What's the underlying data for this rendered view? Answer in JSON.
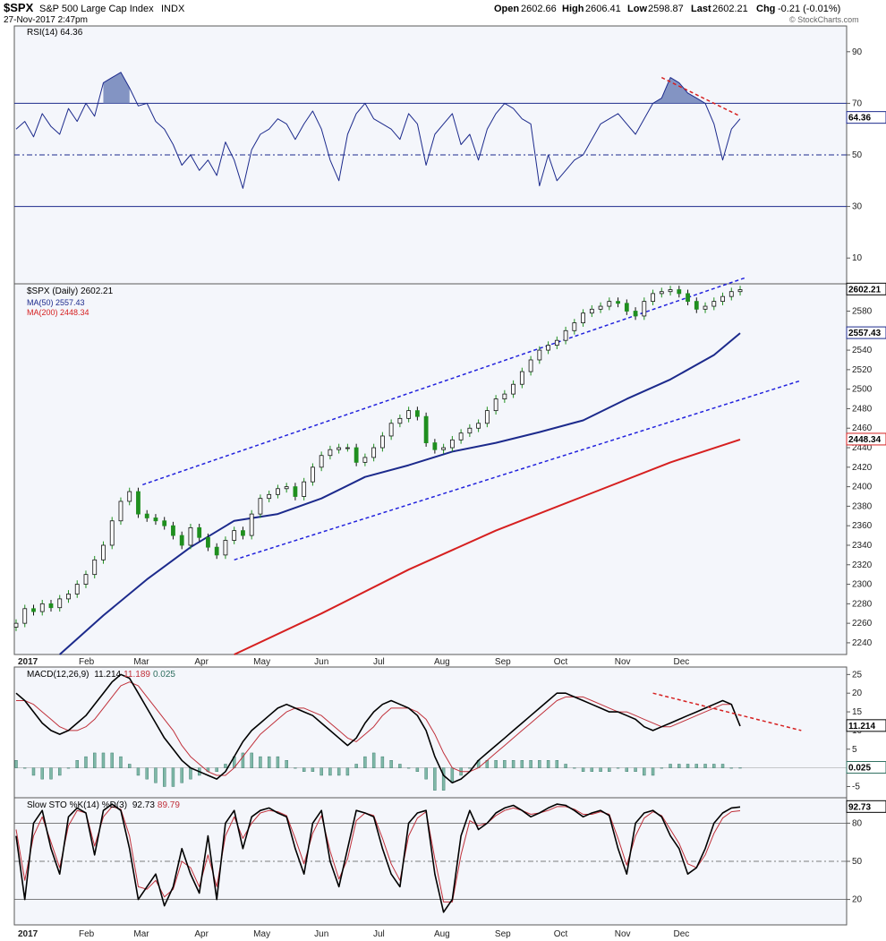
{
  "header": {
    "symbol": "$SPX",
    "name": "S&P 500 Large Cap Index",
    "exchange": "INDX",
    "date": "27-Nov-2017 2:47pm",
    "open_label": "Open",
    "open": "2602.66",
    "high_label": "High",
    "high": "2606.41",
    "low_label": "Low",
    "low": "2598.87",
    "last_label": "Last",
    "last": "2602.21",
    "chg_label": "Chg",
    "chg": "-0.21 (-0.01%)",
    "watermark": "© StockCharts.com"
  },
  "colors": {
    "bg": "#ffffff",
    "panel_bg": "#f4f6fb",
    "frame": "#5a5a5a",
    "rsi_line": "#1c2a8c",
    "rsi_fill": "#6f83b8",
    "ma50": "#1c2a8c",
    "ma200": "#d62020",
    "channel": "#2222dd",
    "diverge": "#d62020",
    "up_candle": "#1f8f1f",
    "down_candle": "#111111",
    "hist": "#7fb8a8",
    "hist_edge": "#2f6f60",
    "sto_d": "#c0303a"
  },
  "months": [
    "2017",
    "Feb",
    "Mar",
    "Apr",
    "May",
    "Jun",
    "Jul",
    "Aug",
    "Sep",
    "Oct",
    "Nov",
    "Dec"
  ],
  "chart_data": [
    {
      "type": "line",
      "id": "rsi",
      "label": "RSI(14) 64.36",
      "last_label": "64.36",
      "ylim": [
        0,
        100
      ],
      "ticks": [
        "90",
        "70",
        "50",
        "30",
        "10"
      ],
      "tick_values": [
        90,
        70,
        50,
        30,
        10
      ],
      "levels": [
        70,
        50,
        30
      ],
      "x": [
        0,
        4,
        8,
        12,
        16,
        20,
        24,
        28,
        32,
        36,
        40,
        44,
        48,
        52,
        56,
        60,
        64,
        68,
        72,
        76,
        80,
        84,
        88,
        92,
        96,
        100,
        104,
        108,
        112,
        116,
        120,
        124,
        128,
        132,
        136,
        140,
        144,
        148,
        152,
        156,
        160,
        164,
        168,
        172,
        176,
        180,
        184,
        188,
        192,
        196,
        200,
        204,
        208,
        212,
        216,
        220,
        224,
        228,
        232,
        236,
        240,
        244,
        248,
        252,
        256,
        260,
        264,
        268,
        272,
        276,
        280,
        284,
        288,
        292,
        296,
        300,
        304,
        308,
        312,
        316,
        320,
        324,
        328,
        332
      ],
      "values": [
        60,
        63,
        57,
        66,
        61,
        58,
        68,
        63,
        70,
        65,
        78,
        80,
        82,
        76,
        69,
        70,
        63,
        60,
        54,
        46,
        50,
        44,
        48,
        42,
        55,
        48,
        37,
        52,
        58,
        60,
        64,
        62,
        56,
        62,
        67,
        60,
        48,
        40,
        58,
        66,
        70,
        64,
        62,
        60,
        56,
        66,
        62,
        46,
        58,
        62,
        66,
        54,
        58,
        48,
        60,
        66,
        70,
        68,
        64,
        62,
        38,
        50,
        40,
        44,
        48,
        50,
        56,
        62,
        64,
        66,
        62,
        58,
        64,
        70,
        72,
        80,
        78,
        74,
        72,
        70,
        62,
        48,
        60,
        64
      ],
      "overbought_peaks": [
        [
          44,
          82
        ],
        [
          292,
          80
        ]
      ],
      "divergence": [
        [
          296,
          80
        ],
        [
          332,
          65
        ]
      ]
    },
    {
      "type": "candlestick",
      "id": "price",
      "label": "$SPX (Daily) 2602.21",
      "ma50_label": "MA(50) 2557.43",
      "ma200_label": "MA(200) 2448.34",
      "last_tag": "2602.21",
      "ma50_tag": "2557.43",
      "ma200_tag": "2448.34",
      "ylim": [
        2228,
        2608
      ],
      "ticks": [
        "2580",
        "2560",
        "2540",
        "2520",
        "2500",
        "2480",
        "2460",
        "2440",
        "2420",
        "2400",
        "2380",
        "2360",
        "2340",
        "2320",
        "2300",
        "2280",
        "2260",
        "2240"
      ],
      "tick_values": [
        2580,
        2560,
        2540,
        2520,
        2500,
        2480,
        2460,
        2440,
        2420,
        2400,
        2380,
        2360,
        2340,
        2320,
        2300,
        2280,
        2260,
        2240
      ],
      "closes_x": [
        0,
        4,
        8,
        12,
        16,
        20,
        24,
        28,
        32,
        36,
        40,
        44,
        48,
        52,
        56,
        60,
        64,
        68,
        72,
        76,
        80,
        84,
        88,
        92,
        96,
        100,
        104,
        108,
        112,
        116,
        120,
        124,
        128,
        132,
        136,
        140,
        144,
        148,
        152,
        156,
        160,
        164,
        168,
        172,
        176,
        180,
        184,
        188,
        192,
        196,
        200,
        204,
        208,
        212,
        216,
        220,
        224,
        228,
        232,
        236,
        240,
        244,
        248,
        252,
        256,
        260,
        264,
        268,
        272,
        276,
        280,
        284,
        288,
        292,
        296,
        300,
        304,
        308,
        312,
        316,
        320,
        324,
        328,
        332
      ],
      "closes": [
        2260,
        2275,
        2272,
        2280,
        2276,
        2285,
        2290,
        2300,
        2310,
        2325,
        2340,
        2365,
        2385,
        2395,
        2372,
        2368,
        2365,
        2360,
        2350,
        2340,
        2358,
        2348,
        2338,
        2330,
        2345,
        2355,
        2350,
        2372,
        2388,
        2392,
        2398,
        2400,
        2390,
        2405,
        2420,
        2432,
        2438,
        2440,
        2440,
        2425,
        2430,
        2440,
        2452,
        2465,
        2470,
        2478,
        2472,
        2445,
        2438,
        2440,
        2448,
        2455,
        2460,
        2465,
        2478,
        2490,
        2495,
        2505,
        2518,
        2530,
        2540,
        2545,
        2550,
        2560,
        2568,
        2578,
        2582,
        2585,
        2590,
        2588,
        2580,
        2575,
        2590,
        2598,
        2600,
        2602,
        2598,
        2590,
        2582,
        2585,
        2590,
        2595,
        2600,
        2602
      ],
      "ma50_x": [
        20,
        40,
        60,
        80,
        100,
        120,
        140,
        160,
        180,
        200,
        220,
        240,
        260,
        280,
        300,
        320,
        332
      ],
      "ma50": [
        2228,
        2268,
        2305,
        2338,
        2365,
        2372,
        2388,
        2410,
        2422,
        2436,
        2445,
        2456,
        2468,
        2490,
        2510,
        2535,
        2557.43
      ],
      "ma200_x": [
        100,
        140,
        180,
        220,
        260,
        300,
        332
      ],
      "ma200": [
        2228,
        2270,
        2315,
        2355,
        2390,
        2425,
        2448.34
      ],
      "channel_upper": [
        [
          58,
          2402
        ],
        [
          334,
          2614
        ]
      ],
      "channel_lower": [
        [
          100,
          2325
        ],
        [
          360,
          2509
        ]
      ]
    },
    {
      "type": "line",
      "id": "macd",
      "label_prefix": "MACD(12,26,9)",
      "macd_value": "11.214",
      "signal_value": "11.189",
      "hist_value": "0.025",
      "ylim": [
        -8,
        27
      ],
      "ticks": [
        "25",
        "20",
        "15",
        "10",
        "5",
        "-5"
      ],
      "tick_values": [
        25,
        20,
        15,
        10,
        5,
        -5
      ],
      "macd_tag": "11.214",
      "hist_tag": "0.025",
      "x": [
        0,
        4,
        8,
        12,
        16,
        20,
        24,
        28,
        32,
        36,
        40,
        44,
        48,
        52,
        56,
        60,
        64,
        68,
        72,
        76,
        80,
        84,
        88,
        92,
        96,
        100,
        104,
        108,
        112,
        116,
        120,
        124,
        128,
        132,
        136,
        140,
        144,
        148,
        152,
        156,
        160,
        164,
        168,
        172,
        176,
        180,
        184,
        188,
        192,
        196,
        200,
        204,
        208,
        212,
        216,
        220,
        224,
        228,
        232,
        236,
        240,
        244,
        248,
        252,
        256,
        260,
        264,
        268,
        272,
        276,
        280,
        284,
        288,
        292,
        296,
        300,
        304,
        308,
        312,
        316,
        320,
        324,
        328,
        332
      ],
      "macd": [
        20,
        18,
        15,
        12,
        10,
        9,
        10,
        12,
        14,
        17,
        20,
        23,
        25,
        24,
        20,
        16,
        12,
        8,
        5,
        2,
        0,
        -1,
        -2,
        -3,
        -1,
        3,
        7,
        10,
        12,
        14,
        16,
        17,
        16,
        15,
        14,
        12,
        10,
        8,
        6,
        8,
        12,
        15,
        17,
        18,
        17,
        16,
        14,
        10,
        3,
        -2,
        -4,
        -3,
        -1,
        2,
        4,
        6,
        8,
        10,
        12,
        14,
        16,
        18,
        20,
        20,
        19,
        18,
        17,
        16,
        15,
        15,
        14,
        13,
        11,
        10,
        11,
        12,
        13,
        14,
        15,
        16,
        17,
        18,
        17,
        11.2
      ],
      "signal": [
        18,
        18,
        17,
        15,
        13,
        11,
        10,
        10,
        11,
        13,
        16,
        19,
        22,
        23,
        22,
        19,
        16,
        13,
        10,
        6,
        3,
        1,
        -1,
        -2,
        -2,
        0,
        3,
        6,
        9,
        11,
        13,
        15,
        16,
        16,
        15,
        14,
        12,
        10,
        8,
        7,
        9,
        11,
        14,
        16,
        16,
        16,
        15,
        13,
        9,
        4,
        0,
        -1,
        -1,
        0,
        2,
        4,
        6,
        8,
        10,
        12,
        14,
        16,
        18,
        19,
        19,
        19,
        18,
        17,
        16,
        15,
        15,
        14,
        13,
        12,
        11,
        11,
        12,
        13,
        14,
        15,
        16,
        17,
        17,
        11.19
      ],
      "histogram": [
        2,
        0,
        -2,
        -3,
        -3,
        -2,
        0,
        2,
        3,
        4,
        4,
        4,
        3,
        1,
        -2,
        -3,
        -4,
        -5,
        -5,
        -4,
        -3,
        -2,
        -1,
        -1,
        1,
        3,
        4,
        4,
        3,
        3,
        3,
        2,
        0,
        -1,
        -1,
        -2,
        -2,
        -2,
        -2,
        1,
        3,
        4,
        3,
        2,
        1,
        0,
        -1,
        -3,
        -6,
        -6,
        -4,
        -2,
        0,
        2,
        2,
        2,
        2,
        2,
        2,
        2,
        2,
        2,
        2,
        1,
        0,
        -1,
        -1,
        -1,
        -1,
        0,
        -1,
        -1,
        -2,
        -2,
        0,
        1,
        1,
        1,
        1,
        1,
        1,
        1,
        0,
        0.025
      ],
      "divergence": [
        [
          292,
          20
        ],
        [
          360,
          10
        ]
      ]
    },
    {
      "type": "line",
      "id": "sto",
      "label_prefix": "Slow STO %K(14) %D(3)",
      "k_value": "92.73",
      "d_value": "89.79",
      "k_tag": "92.73",
      "ylim": [
        0,
        100
      ],
      "ticks": [
        "80",
        "50",
        "20"
      ],
      "tick_values": [
        80,
        50,
        20
      ],
      "levels": [
        80,
        50,
        20
      ],
      "x": [
        0,
        4,
        8,
        12,
        16,
        20,
        24,
        28,
        32,
        36,
        40,
        44,
        48,
        52,
        56,
        60,
        64,
        68,
        72,
        76,
        80,
        84,
        88,
        92,
        96,
        100,
        104,
        108,
        112,
        116,
        120,
        124,
        128,
        132,
        136,
        140,
        144,
        148,
        152,
        156,
        160,
        164,
        168,
        172,
        176,
        180,
        184,
        188,
        192,
        196,
        200,
        204,
        208,
        212,
        216,
        220,
        224,
        228,
        232,
        236,
        240,
        244,
        248,
        252,
        256,
        260,
        264,
        268,
        272,
        276,
        280,
        284,
        288,
        292,
        296,
        300,
        304,
        308,
        312,
        316,
        320,
        324,
        328,
        332
      ],
      "k": [
        70,
        20,
        80,
        90,
        60,
        40,
        85,
        92,
        88,
        55,
        90,
        95,
        90,
        60,
        20,
        30,
        40,
        15,
        30,
        60,
        40,
        25,
        70,
        20,
        80,
        90,
        60,
        85,
        90,
        92,
        88,
        85,
        60,
        40,
        80,
        90,
        50,
        30,
        60,
        90,
        88,
        85,
        60,
        40,
        30,
        80,
        88,
        90,
        40,
        10,
        20,
        70,
        90,
        75,
        80,
        88,
        92,
        94,
        90,
        85,
        88,
        92,
        95,
        94,
        90,
        85,
        88,
        90,
        86,
        60,
        40,
        80,
        88,
        90,
        85,
        70,
        60,
        40,
        45,
        60,
        80,
        88,
        92,
        92.73
      ],
      "d": [
        75,
        35,
        70,
        85,
        65,
        45,
        78,
        90,
        88,
        62,
        85,
        93,
        91,
        70,
        30,
        28,
        35,
        22,
        28,
        50,
        45,
        30,
        55,
        30,
        70,
        85,
        68,
        80,
        88,
        90,
        89,
        86,
        68,
        48,
        72,
        86,
        58,
        36,
        52,
        82,
        88,
        86,
        68,
        48,
        35,
        70,
        84,
        89,
        52,
        18,
        18,
        55,
        82,
        78,
        80,
        86,
        90,
        92,
        90,
        87,
        88,
        90,
        93,
        93,
        91,
        87,
        87,
        89,
        87,
        68,
        47,
        70,
        84,
        89,
        86,
        75,
        64,
        48,
        45,
        55,
        72,
        84,
        89,
        89.79
      ]
    }
  ]
}
